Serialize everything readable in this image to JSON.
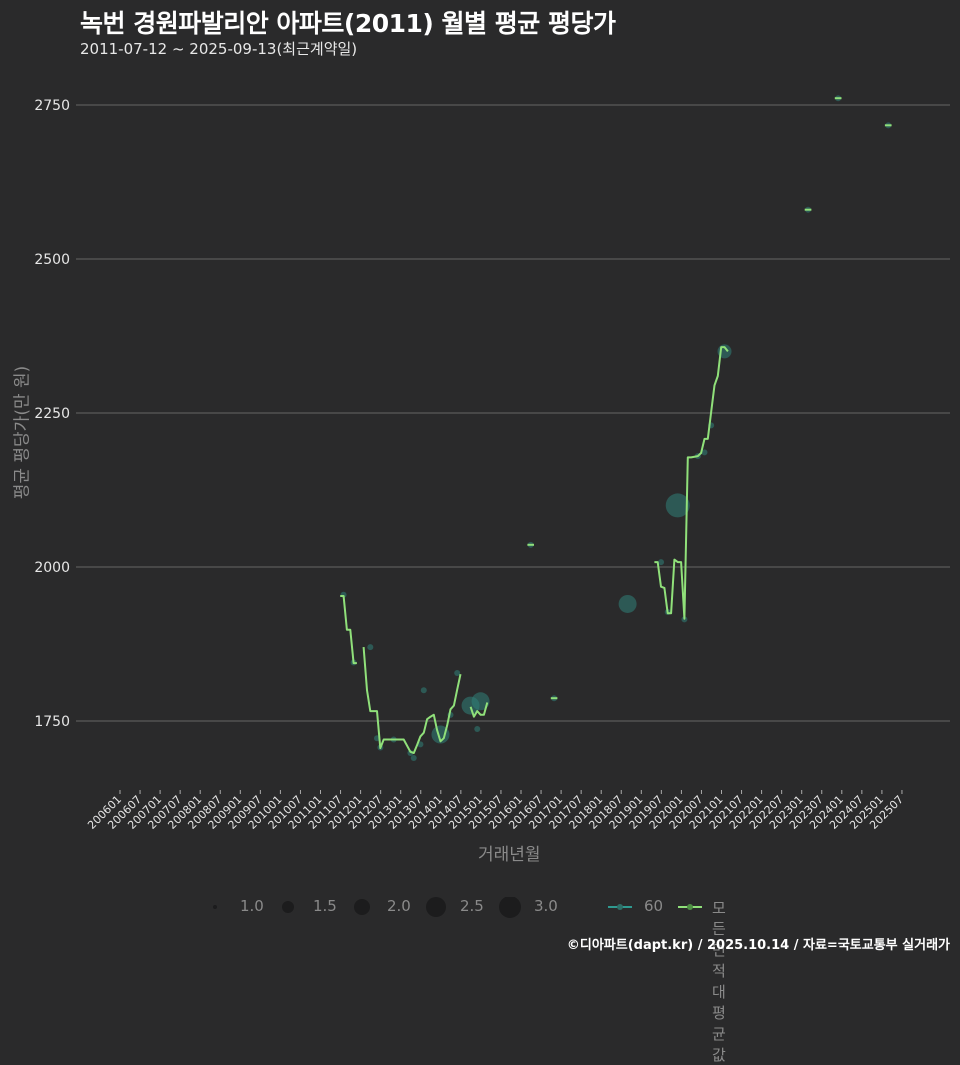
{
  "header": {
    "title": "녹번 경원파발리안 아파트(2011) 월별 평균 평당가",
    "subtitle": "2011-07-12 ~ 2025-09-13(최근계약일)"
  },
  "axes": {
    "ylabel": "평균 평당가(만 원)",
    "xlabel": "거래년월"
  },
  "footer": "©디아파트(dapt.kr) / 2025.10.14 / 자료=국토교통부 실거래가",
  "legend": {
    "size_labels": [
      "1.0",
      "1.5",
      "2.0",
      "2.5",
      "3.0"
    ],
    "series_60": "60",
    "series_all": "모든 면적대 평균값"
  },
  "colors": {
    "background": "#2a2a2b",
    "grid": "#5a5a5a",
    "line": "#90e07a",
    "bubble": "#2f7f78"
  },
  "chart_data": {
    "type": "line",
    "title": "녹번 경원파발리안 아파트(2011) 월별 평균 평당가",
    "subtitle": "2011-07-12 ~ 2025-09-13(최근계약일)",
    "xlabel": "거래년월",
    "ylabel": "평균 평당가(만 원)",
    "ylim": [
      1650,
      2790
    ],
    "yticks": [
      1750,
      2000,
      2250,
      2500,
      2750
    ],
    "xticks": [
      "200601",
      "200607",
      "200701",
      "200707",
      "200801",
      "200807",
      "200901",
      "200907",
      "201001",
      "201007",
      "201101",
      "201107",
      "201201",
      "201207",
      "201301",
      "201307",
      "201401",
      "201407",
      "201501",
      "201507",
      "201601",
      "201607",
      "201701",
      "201707",
      "201801",
      "201807",
      "201901",
      "201907",
      "202001",
      "202007",
      "202101",
      "202107",
      "202201",
      "202207",
      "202301",
      "202307",
      "202401",
      "202407",
      "202501",
      "202507"
    ],
    "grid": true,
    "legend_position": "bottom",
    "series": [
      {
        "name": "모든 면적대 평균값",
        "segments": [
          [
            [
              "2011-09",
              1953
            ],
            [
              "2011-10",
              1953
            ],
            [
              "2011-11",
              1898
            ],
            [
              "2011-12",
              1898
            ],
            [
              "2012-01",
              1844
            ],
            [
              "2012-02",
              1844
            ]
          ],
          [
            [
              "2012-04",
              1870
            ],
            [
              "2012-05",
              1800
            ],
            [
              "2012-06",
              1766
            ],
            [
              "2012-08",
              1766
            ],
            [
              "2012-09",
              1706
            ],
            [
              "2012-10",
              1720
            ],
            [
              "2012-11",
              1720
            ],
            [
              "2013-02",
              1720
            ],
            [
              "2013-04",
              1720
            ],
            [
              "2013-06",
              1700
            ],
            [
              "2013-07",
              1698
            ],
            [
              "2013-08",
              1711
            ],
            [
              "2013-09",
              1725
            ],
            [
              "2013-10",
              1731
            ],
            [
              "2013-11",
              1753
            ],
            [
              "2013-12",
              1757
            ],
            [
              "2014-01",
              1760
            ],
            [
              "2014-02",
              1735
            ],
            [
              "2014-03",
              1717
            ],
            [
              "2014-04",
              1722
            ],
            [
              "2014-05",
              1743
            ],
            [
              "2014-06",
              1769
            ],
            [
              "2014-07",
              1775
            ],
            [
              "2014-08",
              1801
            ],
            [
              "2014-09",
              1826
            ]
          ],
          [
            [
              "2014-12",
              1773
            ],
            [
              "2015-01",
              1757
            ],
            [
              "2015-02",
              1766
            ],
            [
              "2015-03",
              1760
            ],
            [
              "2015-04",
              1760
            ],
            [
              "2015-05",
              1780
            ]
          ],
          [
            [
              "2016-05",
              2036
            ],
            [
              "2016-07",
              2036
            ]
          ],
          [
            [
              "2016-12",
              1787
            ],
            [
              "2017-02",
              1787
            ]
          ],
          [
            [
              "2019-07",
              2008
            ],
            [
              "2019-08",
              2008
            ],
            [
              "2019-09",
              1968
            ],
            [
              "2019-10",
              1966
            ],
            [
              "2019-11",
              1925
            ],
            [
              "2019-12",
              1925
            ],
            [
              "2020-01",
              2012
            ],
            [
              "2020-02",
              2008
            ],
            [
              "2020-03",
              2008
            ],
            [
              "2020-04",
              1916
            ],
            [
              "2020-05",
              2178
            ],
            [
              "2020-06",
              2178
            ],
            [
              "2020-08",
              2180
            ],
            [
              "2020-09",
              2185
            ],
            [
              "2020-10",
              2208
            ],
            [
              "2020-11",
              2208
            ],
            [
              "2021-01",
              2295
            ],
            [
              "2021-02",
              2310
            ],
            [
              "2021-03",
              2357
            ],
            [
              "2021-04",
              2357
            ],
            [
              "2021-05",
              2350
            ]
          ],
          [
            [
              "2023-04",
              2580
            ],
            [
              "2023-06",
              2580
            ]
          ],
          [
            [
              "2024-01",
              2761
            ],
            [
              "2024-03",
              2761
            ]
          ],
          [
            [
              "2025-04",
              2717
            ],
            [
              "2025-06",
              2717
            ]
          ]
        ]
      },
      {
        "name": "60",
        "points": [
          [
            "2011-10",
            1955,
            1
          ],
          [
            "2012-01",
            1845,
            1
          ],
          [
            "2012-06",
            1870,
            1
          ],
          [
            "2012-08",
            1722,
            1
          ],
          [
            "2012-09",
            1707,
            1
          ],
          [
            "2013-01",
            1720,
            1
          ],
          [
            "2013-06",
            1698,
            1
          ],
          [
            "2013-07",
            1690,
            1
          ],
          [
            "2013-09",
            1712,
            1
          ],
          [
            "2013-10",
            1800,
            1
          ],
          [
            "2014-03",
            1728,
            2
          ],
          [
            "2014-06",
            1760,
            1
          ],
          [
            "2014-08",
            1828,
            1
          ],
          [
            "2014-12",
            1775,
            2
          ],
          [
            "2015-02",
            1737,
            1
          ],
          [
            "2015-03",
            1782,
            2
          ],
          [
            "2016-06",
            2036,
            1
          ],
          [
            "2017-01",
            1787,
            1
          ],
          [
            "2018-11",
            1940,
            2
          ],
          [
            "2019-09",
            2008,
            1
          ],
          [
            "2019-11",
            1927,
            1
          ],
          [
            "2020-02",
            2100,
            2.5
          ],
          [
            "2020-04",
            1915,
            1
          ],
          [
            "2020-08",
            2180,
            1
          ],
          [
            "2020-10",
            2186,
            1
          ],
          [
            "2020-12",
            2230,
            1
          ],
          [
            "2021-04",
            2350,
            1.5
          ],
          [
            "2023-05",
            2580,
            1
          ],
          [
            "2024-02",
            2761,
            1
          ],
          [
            "2025-05",
            2717,
            1
          ]
        ]
      }
    ]
  }
}
